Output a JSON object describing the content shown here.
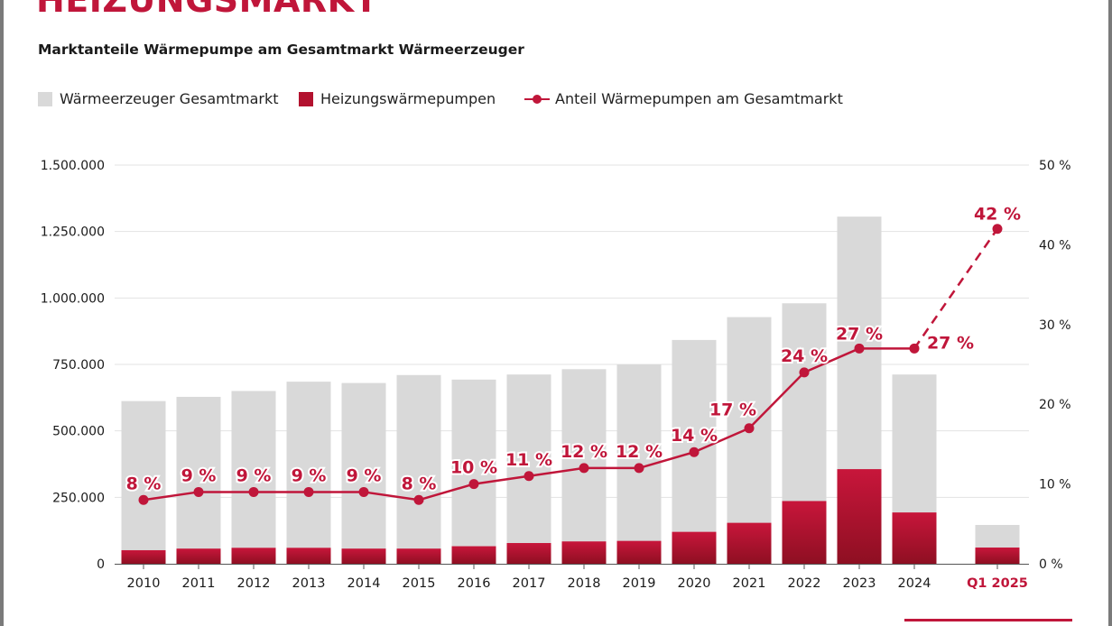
{
  "headline": "HEIZUNGSMARKT",
  "colors": {
    "accent": "#c0163a",
    "total_bar": "#d9d9d9",
    "heat_pump_bar_top": "#c8163b",
    "heat_pump_bar_bottom": "#8e0f22",
    "grid": "#e3e3e3",
    "text": "#1a1a1a",
    "frame": "#7a7a7a"
  },
  "chart_data": {
    "type": "bar",
    "title": "Marktanteile Wärmepumpe am Gesamtmarkt Wärmeerzeuger",
    "categories": [
      "2010",
      "2011",
      "2012",
      "2013",
      "2014",
      "2015",
      "2016",
      "2017",
      "2018",
      "2019",
      "2020",
      "2021",
      "2022",
      "2023",
      "2024",
      "Q1 2025"
    ],
    "highlight_category": "Q1 2025",
    "series": [
      {
        "name": "Wärmeerzeuger Gesamtmarkt",
        "type": "bar",
        "values": [
          612000,
          628000,
          650000,
          685000,
          680000,
          710000,
          693000,
          712000,
          732000,
          750000,
          842000,
          928000,
          980000,
          1306000,
          712000,
          146000
        ]
      },
      {
        "name": "Heizungswärmepumpen",
        "type": "bar",
        "values": [
          51000,
          57000,
          60000,
          60000,
          57000,
          57000,
          66000,
          78000,
          84000,
          86000,
          120000,
          154000,
          236000,
          356000,
          193000,
          61000
        ]
      },
      {
        "name": "Anteil Wärmepumpen am Gesamtmarkt",
        "type": "line",
        "axis": "right",
        "values": [
          8,
          9,
          9,
          9,
          9,
          8,
          10,
          11,
          12,
          12,
          14,
          17,
          24,
          27,
          27,
          42
        ],
        "labels": [
          "8 %",
          "9 %",
          "9 %",
          "9 %",
          "9 %",
          "8 %",
          "10 %",
          "11 %",
          "12 %",
          "12 %",
          "14 %",
          "17 %",
          "24 %",
          "27 %",
          "27 %",
          "42 %"
        ],
        "dashed_last_segment": true
      }
    ],
    "y_left": {
      "ylim": [
        0,
        1500000
      ],
      "ticks": [
        0,
        250000,
        500000,
        750000,
        1000000,
        1250000,
        1500000
      ],
      "tick_labels": [
        "0",
        "250.000",
        "500.000",
        "750.000",
        "1.000.000",
        "1.250.000",
        "1.500.000"
      ]
    },
    "y_right": {
      "ylim": [
        0,
        50
      ],
      "ticks": [
        0,
        10,
        20,
        30,
        40,
        50
      ],
      "tick_labels": [
        "0 %",
        "10 %",
        "20 %",
        "30 %",
        "40 %",
        "50 %"
      ]
    },
    "grid": true,
    "legend_position": "top-left",
    "xlabel": "",
    "ylabel": ""
  }
}
